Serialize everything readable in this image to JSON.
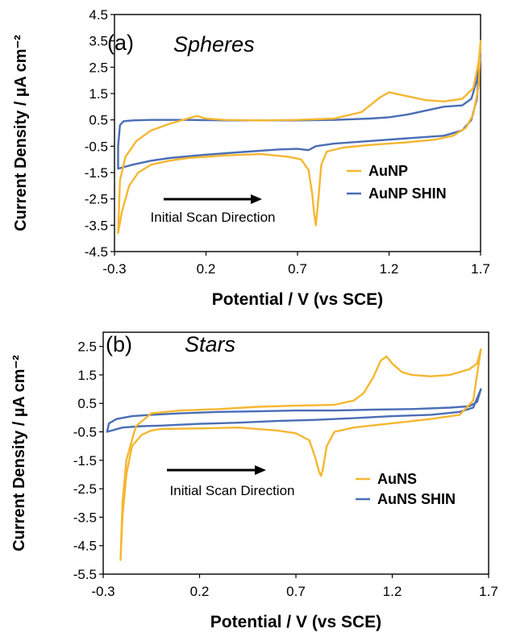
{
  "chart_data": [
    {
      "type": "line",
      "panel_label": "(a)",
      "title": "Spheres",
      "xlabel": "Potential / V (vs SCE)",
      "ylabel": "Current Density / µA cm⁻²",
      "xlim": [
        -0.3,
        1.7
      ],
      "ylim": [
        -4.5,
        4.5
      ],
      "xticks": [
        "-0.3",
        "0.2",
        "0.7",
        "1.2",
        "1.7"
      ],
      "yticks": [
        "4.5",
        "3.5",
        "2.5",
        "1.5",
        "0.5",
        "-0.5",
        "-1.5",
        "-2.5",
        "-3.5",
        "-4.5"
      ],
      "grid": false,
      "legend_position": "right",
      "annotation": "Initial Scan Direction",
      "series": [
        {
          "name": "AuNP",
          "color": "#f5b731",
          "x": [
            -0.28,
            -0.26,
            -0.22,
            -0.17,
            -0.1,
            0.0,
            0.1,
            0.3,
            0.5,
            0.65,
            0.72,
            0.76,
            0.78,
            0.79,
            0.8,
            0.81,
            0.83,
            0.86,
            0.95,
            1.1,
            1.3,
            1.45,
            1.55,
            1.62,
            1.66,
            1.69,
            1.7,
            1.69,
            1.66,
            1.6,
            1.5,
            1.4,
            1.3,
            1.2,
            1.15,
            1.05,
            0.9,
            0.7,
            0.5,
            0.3,
            0.2,
            0.15,
            0.1,
            0.0,
            -0.1,
            -0.18,
            -0.24,
            -0.27,
            -0.28
          ],
          "y": [
            -3.8,
            -3.0,
            -2.0,
            -1.5,
            -1.2,
            -1.05,
            -0.95,
            -0.85,
            -0.8,
            -0.9,
            -1.0,
            -1.4,
            -2.3,
            -3.0,
            -3.5,
            -2.8,
            -1.2,
            -0.7,
            -0.55,
            -0.45,
            -0.35,
            -0.25,
            -0.1,
            0.2,
            0.7,
            1.8,
            3.5,
            2.7,
            1.7,
            1.3,
            1.2,
            1.25,
            1.4,
            1.55,
            1.35,
            0.8,
            0.55,
            0.5,
            0.48,
            0.5,
            0.55,
            0.65,
            0.55,
            0.35,
            0.1,
            -0.3,
            -0.9,
            -1.8,
            -3.8
          ]
        },
        {
          "name": "AuNP SHIN",
          "color": "#4a6db5",
          "x": [
            -0.28,
            -0.2,
            -0.1,
            0.0,
            0.2,
            0.4,
            0.6,
            0.7,
            0.76,
            0.8,
            0.9,
            1.1,
            1.3,
            1.5,
            1.6,
            1.65,
            1.68,
            1.7,
            1.68,
            1.65,
            1.6,
            1.5,
            1.4,
            1.3,
            1.2,
            1.1,
            0.9,
            0.7,
            0.5,
            0.3,
            0.1,
            -0.1,
            -0.2,
            -0.25,
            -0.27,
            -0.28,
            -0.28
          ],
          "y": [
            -1.35,
            -1.2,
            -1.05,
            -0.95,
            -0.82,
            -0.72,
            -0.62,
            -0.6,
            -0.65,
            -0.5,
            -0.4,
            -0.3,
            -0.2,
            -0.1,
            0.1,
            0.5,
            1.3,
            3.0,
            2.0,
            1.3,
            1.05,
            1.0,
            0.85,
            0.7,
            0.6,
            0.55,
            0.5,
            0.48,
            0.48,
            0.48,
            0.5,
            0.5,
            0.48,
            0.45,
            0.3,
            -0.5,
            -1.35
          ]
        }
      ]
    },
    {
      "type": "line",
      "panel_label": "(b)",
      "title": "Stars",
      "xlabel": "Potential / V (vs SCE)",
      "ylabel": "Current Density / µA cm⁻²",
      "xlim": [
        -0.3,
        1.7
      ],
      "ylim": [
        -5.5,
        3.0
      ],
      "xticks": [
        "-0.3",
        "0.2",
        "0.7",
        "1.2",
        "1.7"
      ],
      "yticks": [
        "2.5",
        "1.5",
        "0.5",
        "-0.5",
        "-1.5",
        "-2.5",
        "-3.5",
        "-4.5",
        "-5.5"
      ],
      "grid": false,
      "legend_position": "right",
      "annotation": "Initial Scan Direction",
      "series": [
        {
          "name": "AuNS",
          "color": "#f5b731",
          "x": [
            -0.21,
            -0.2,
            -0.18,
            -0.15,
            -0.1,
            -0.05,
            0.0,
            0.2,
            0.4,
            0.6,
            0.7,
            0.77,
            0.8,
            0.82,
            0.83,
            0.84,
            0.86,
            0.9,
            1.0,
            1.2,
            1.4,
            1.55,
            1.62,
            1.66,
            1.64,
            1.6,
            1.5,
            1.4,
            1.3,
            1.25,
            1.2,
            1.17,
            1.14,
            1.1,
            1.05,
            1.0,
            0.9,
            0.7,
            0.5,
            0.3,
            0.1,
            -0.05,
            -0.13,
            -0.18,
            -0.2,
            -0.21
          ],
          "y": [
            -5.0,
            -3.5,
            -2.0,
            -1.0,
            -0.6,
            -0.45,
            -0.4,
            -0.38,
            -0.35,
            -0.45,
            -0.55,
            -0.8,
            -1.4,
            -1.9,
            -2.05,
            -1.8,
            -1.0,
            -0.5,
            -0.35,
            -0.2,
            -0.05,
            0.1,
            0.6,
            2.4,
            1.9,
            1.7,
            1.5,
            1.45,
            1.5,
            1.6,
            1.9,
            2.15,
            2.0,
            1.4,
            0.85,
            0.6,
            0.45,
            0.42,
            0.38,
            0.3,
            0.25,
            0.15,
            -0.3,
            -1.5,
            -3.0,
            -5.0
          ]
        },
        {
          "name": "AuNS SHIN",
          "color": "#4a6db5",
          "x": [
            -0.28,
            -0.2,
            -0.1,
            0.0,
            0.2,
            0.4,
            0.6,
            0.8,
            1.0,
            1.2,
            1.4,
            1.55,
            1.62,
            1.66,
            1.64,
            1.6,
            1.5,
            1.3,
            1.1,
            0.9,
            0.7,
            0.5,
            0.3,
            0.1,
            -0.05,
            -0.15,
            -0.23,
            -0.27,
            -0.28
          ],
          "y": [
            -0.5,
            -0.35,
            -0.3,
            -0.28,
            -0.22,
            -0.18,
            -0.12,
            -0.08,
            -0.02,
            0.05,
            0.1,
            0.2,
            0.35,
            1.0,
            0.55,
            0.4,
            0.35,
            0.3,
            0.28,
            0.25,
            0.25,
            0.22,
            0.2,
            0.15,
            0.1,
            0.05,
            -0.05,
            -0.2,
            -0.5
          ]
        }
      ]
    }
  ]
}
